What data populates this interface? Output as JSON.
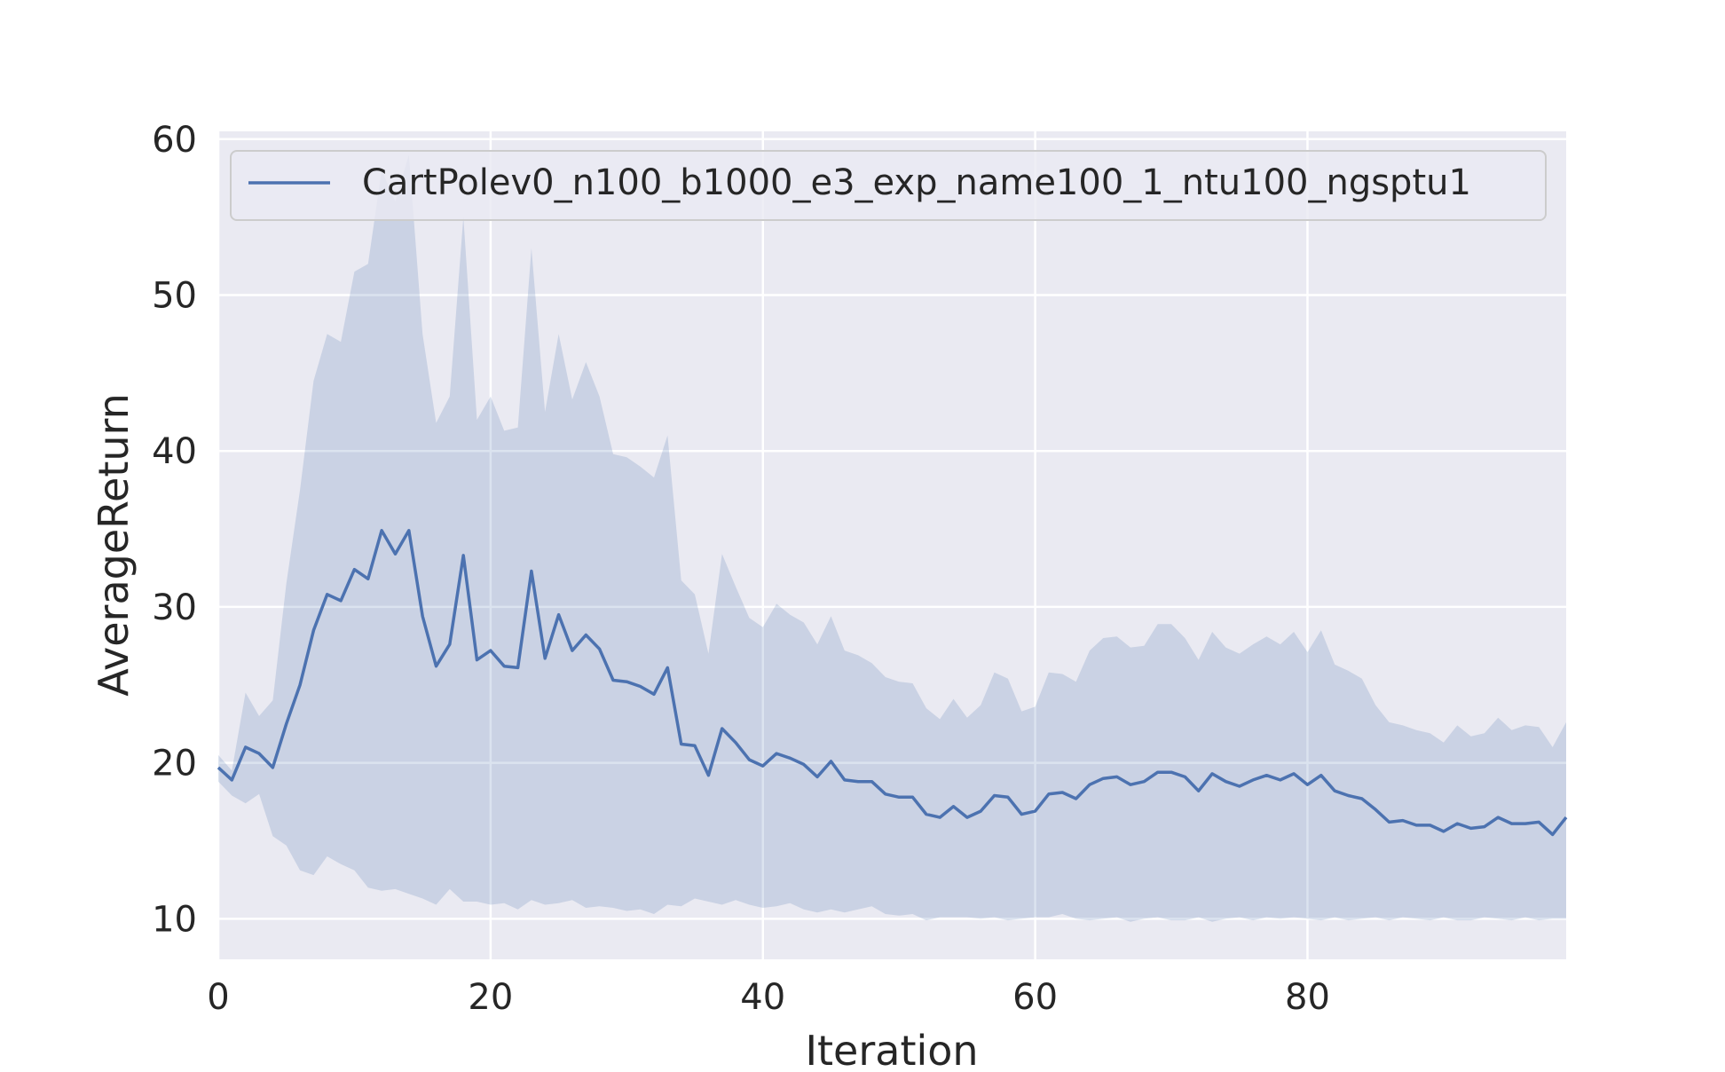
{
  "chart_data": {
    "type": "line",
    "title": "",
    "xlabel": "Iteration",
    "ylabel": "AverageReturn",
    "xlim": [
      0,
      99
    ],
    "ylim": [
      7.4,
      60.5
    ],
    "grid": true,
    "legend_position": "top",
    "x_ticks": [
      0,
      20,
      40,
      60,
      80
    ],
    "x_tick_labels": [
      "0",
      "20",
      "40",
      "60",
      "80"
    ],
    "y_ticks": [
      10,
      20,
      30,
      40,
      50,
      60
    ],
    "y_tick_labels": [
      "10",
      "20",
      "30",
      "40",
      "50",
      "60"
    ],
    "colors": {
      "line": "#4c72b0",
      "band": "#4c72b0",
      "background": "#eaeaf2",
      "grid": "#ffffff"
    },
    "series": [
      {
        "name": "CartPolev0_n100_b1000_e3_exp_name100_1_ntu100_ngsptu1",
        "x": [
          0,
          1,
          2,
          3,
          4,
          5,
          6,
          7,
          8,
          9,
          10,
          11,
          12,
          13,
          14,
          15,
          16,
          17,
          18,
          19,
          20,
          21,
          22,
          23,
          24,
          25,
          26,
          27,
          28,
          29,
          30,
          31,
          32,
          33,
          34,
          35,
          36,
          37,
          38,
          39,
          40,
          41,
          42,
          43,
          44,
          45,
          46,
          47,
          48,
          49,
          50,
          51,
          52,
          53,
          54,
          55,
          56,
          57,
          58,
          59,
          60,
          61,
          62,
          63,
          64,
          65,
          66,
          67,
          68,
          69,
          70,
          71,
          72,
          73,
          74,
          75,
          76,
          77,
          78,
          79,
          80,
          81,
          82,
          83,
          84,
          85,
          86,
          87,
          88,
          89,
          90,
          91,
          92,
          93,
          94,
          95,
          96,
          97,
          98,
          99
        ],
        "y": [
          19.7,
          18.9,
          21.0,
          20.6,
          19.7,
          22.5,
          25.0,
          28.5,
          30.8,
          30.4,
          32.4,
          31.8,
          34.9,
          33.4,
          34.9,
          29.4,
          26.2,
          27.6,
          33.3,
          26.6,
          27.2,
          26.2,
          26.1,
          32.3,
          26.7,
          29.5,
          27.2,
          28.2,
          27.3,
          25.3,
          25.2,
          24.9,
          24.4,
          26.1,
          21.2,
          21.1,
          19.2,
          22.2,
          21.3,
          20.2,
          19.8,
          20.6,
          20.3,
          19.9,
          19.1,
          20.1,
          18.9,
          18.8,
          18.8,
          18.0,
          17.8,
          17.8,
          16.7,
          16.5,
          17.2,
          16.5,
          16.9,
          17.9,
          17.8,
          16.7,
          16.9,
          18.0,
          18.1,
          17.7,
          18.6,
          19.0,
          19.1,
          18.6,
          18.8,
          19.4,
          19.4,
          19.1,
          18.2,
          19.3,
          18.8,
          18.5,
          18.9,
          19.2,
          18.9,
          19.3,
          18.6,
          19.2,
          18.2,
          17.9,
          17.7,
          17.0,
          16.2,
          16.3,
          16.0,
          16.0,
          15.6,
          16.1,
          15.8,
          15.9,
          16.5,
          16.1,
          16.1,
          16.2,
          15.4,
          16.5
        ],
        "upper": [
          20.5,
          19.5,
          24.5,
          23.0,
          24.0,
          31.5,
          37.5,
          44.5,
          47.5,
          47.0,
          51.5,
          52.0,
          58.0,
          56.0,
          59.0,
          47.5,
          41.8,
          43.5,
          55.0,
          42.0,
          43.5,
          41.3,
          41.5,
          53.0,
          42.5,
          47.5,
          43.3,
          45.7,
          43.5,
          39.8,
          39.6,
          39.0,
          38.3,
          41.0,
          31.7,
          30.8,
          27.0,
          33.4,
          31.3,
          29.3,
          28.7,
          30.2,
          29.5,
          29.0,
          27.6,
          29.4,
          27.2,
          26.9,
          26.4,
          25.5,
          25.2,
          25.1,
          23.5,
          22.8,
          24.1,
          22.9,
          23.7,
          25.8,
          25.4,
          23.3,
          23.6,
          25.8,
          25.7,
          25.2,
          27.2,
          28.0,
          28.1,
          27.4,
          27.5,
          28.9,
          28.9,
          28.0,
          26.6,
          28.4,
          27.4,
          27.0,
          27.6,
          28.1,
          27.6,
          28.4,
          27.1,
          28.5,
          26.3,
          25.9,
          25.4,
          23.7,
          22.6,
          22.4,
          22.1,
          21.9,
          21.3,
          22.4,
          21.7,
          21.9,
          22.9,
          22.1,
          22.4,
          22.3,
          21.0,
          22.6
        ],
        "lower": [
          18.8,
          17.9,
          17.4,
          18.0,
          15.3,
          14.7,
          13.1,
          12.8,
          14.0,
          13.5,
          13.1,
          12.0,
          11.8,
          11.9,
          11.6,
          11.3,
          10.9,
          11.9,
          11.1,
          11.1,
          10.9,
          11.0,
          10.6,
          11.2,
          10.9,
          11.0,
          11.2,
          10.7,
          10.8,
          10.7,
          10.5,
          10.6,
          10.3,
          10.9,
          10.8,
          11.3,
          11.1,
          10.9,
          11.2,
          10.9,
          10.7,
          10.8,
          11.0,
          10.6,
          10.4,
          10.6,
          10.4,
          10.6,
          10.8,
          10.3,
          10.2,
          10.3,
          9.9,
          10.1,
          10.1,
          10.1,
          10.0,
          10.1,
          9.9,
          10.0,
          10.1,
          10.1,
          10.3,
          10.0,
          9.9,
          10.0,
          10.1,
          9.8,
          10.0,
          10.1,
          9.9,
          9.9,
          10.1,
          9.8,
          10.0,
          10.1,
          9.9,
          10.1,
          10.0,
          10.1,
          10.0,
          9.9,
          10.1,
          9.9,
          10.0,
          10.1,
          9.9,
          10.1,
          10.0,
          9.9,
          10.1,
          9.9,
          9.9,
          10.1,
          10.0,
          9.9,
          10.1,
          9.9,
          10.0,
          10.0
        ]
      }
    ]
  }
}
